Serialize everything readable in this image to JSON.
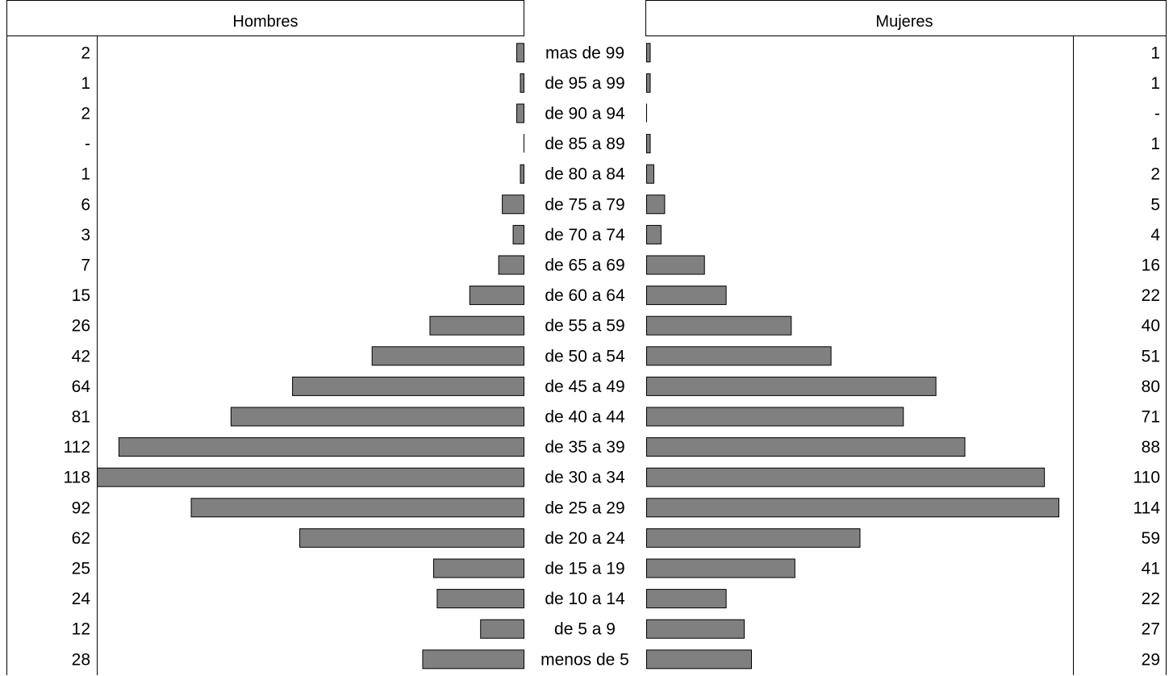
{
  "chart_data": {
    "type": "bar",
    "orientation": "horizontal-butterfly",
    "bar_color": "#808080",
    "left_header": "Hombres",
    "right_header": "Mujeres",
    "categories": [
      "mas de 99",
      "de 95 a 99",
      "de 90 a 94",
      "de 85 a 89",
      "de 80 a 84",
      "de 75 a 79",
      "de 70 a 74",
      "de 65 a 69",
      "de 60 a 64",
      "de 55 a 59",
      "de 50 a 54",
      "de 45 a 49",
      "de 40 a 44",
      "de 35 a 39",
      "de 30 a 34",
      "de 25 a 29",
      "de 20 a 24",
      "de 15 a 19",
      "de 10 a 14",
      "de 5 a 9",
      "menos de 5"
    ],
    "series": [
      {
        "name": "Hombres",
        "values": [
          2,
          1,
          2,
          0,
          1,
          6,
          3,
          7,
          15,
          26,
          42,
          64,
          81,
          112,
          118,
          92,
          62,
          25,
          24,
          12,
          28
        ],
        "labels": [
          "2",
          "1",
          "2",
          "-",
          "1",
          "6",
          "3",
          "7",
          "15",
          "26",
          "42",
          "64",
          "81",
          "112",
          "118",
          "92",
          "62",
          "25",
          "24",
          "12",
          "28"
        ]
      },
      {
        "name": "Mujeres",
        "values": [
          1,
          1,
          0,
          1,
          2,
          5,
          4,
          16,
          22,
          40,
          51,
          80,
          71,
          88,
          110,
          114,
          59,
          41,
          22,
          27,
          29
        ],
        "labels": [
          "1",
          "1",
          "-",
          "1",
          "2",
          "5",
          "4",
          "16",
          "22",
          "40",
          "51",
          "80",
          "71",
          "88",
          "110",
          "114",
          "59",
          "41",
          "22",
          "27",
          "29"
        ]
      }
    ]
  }
}
